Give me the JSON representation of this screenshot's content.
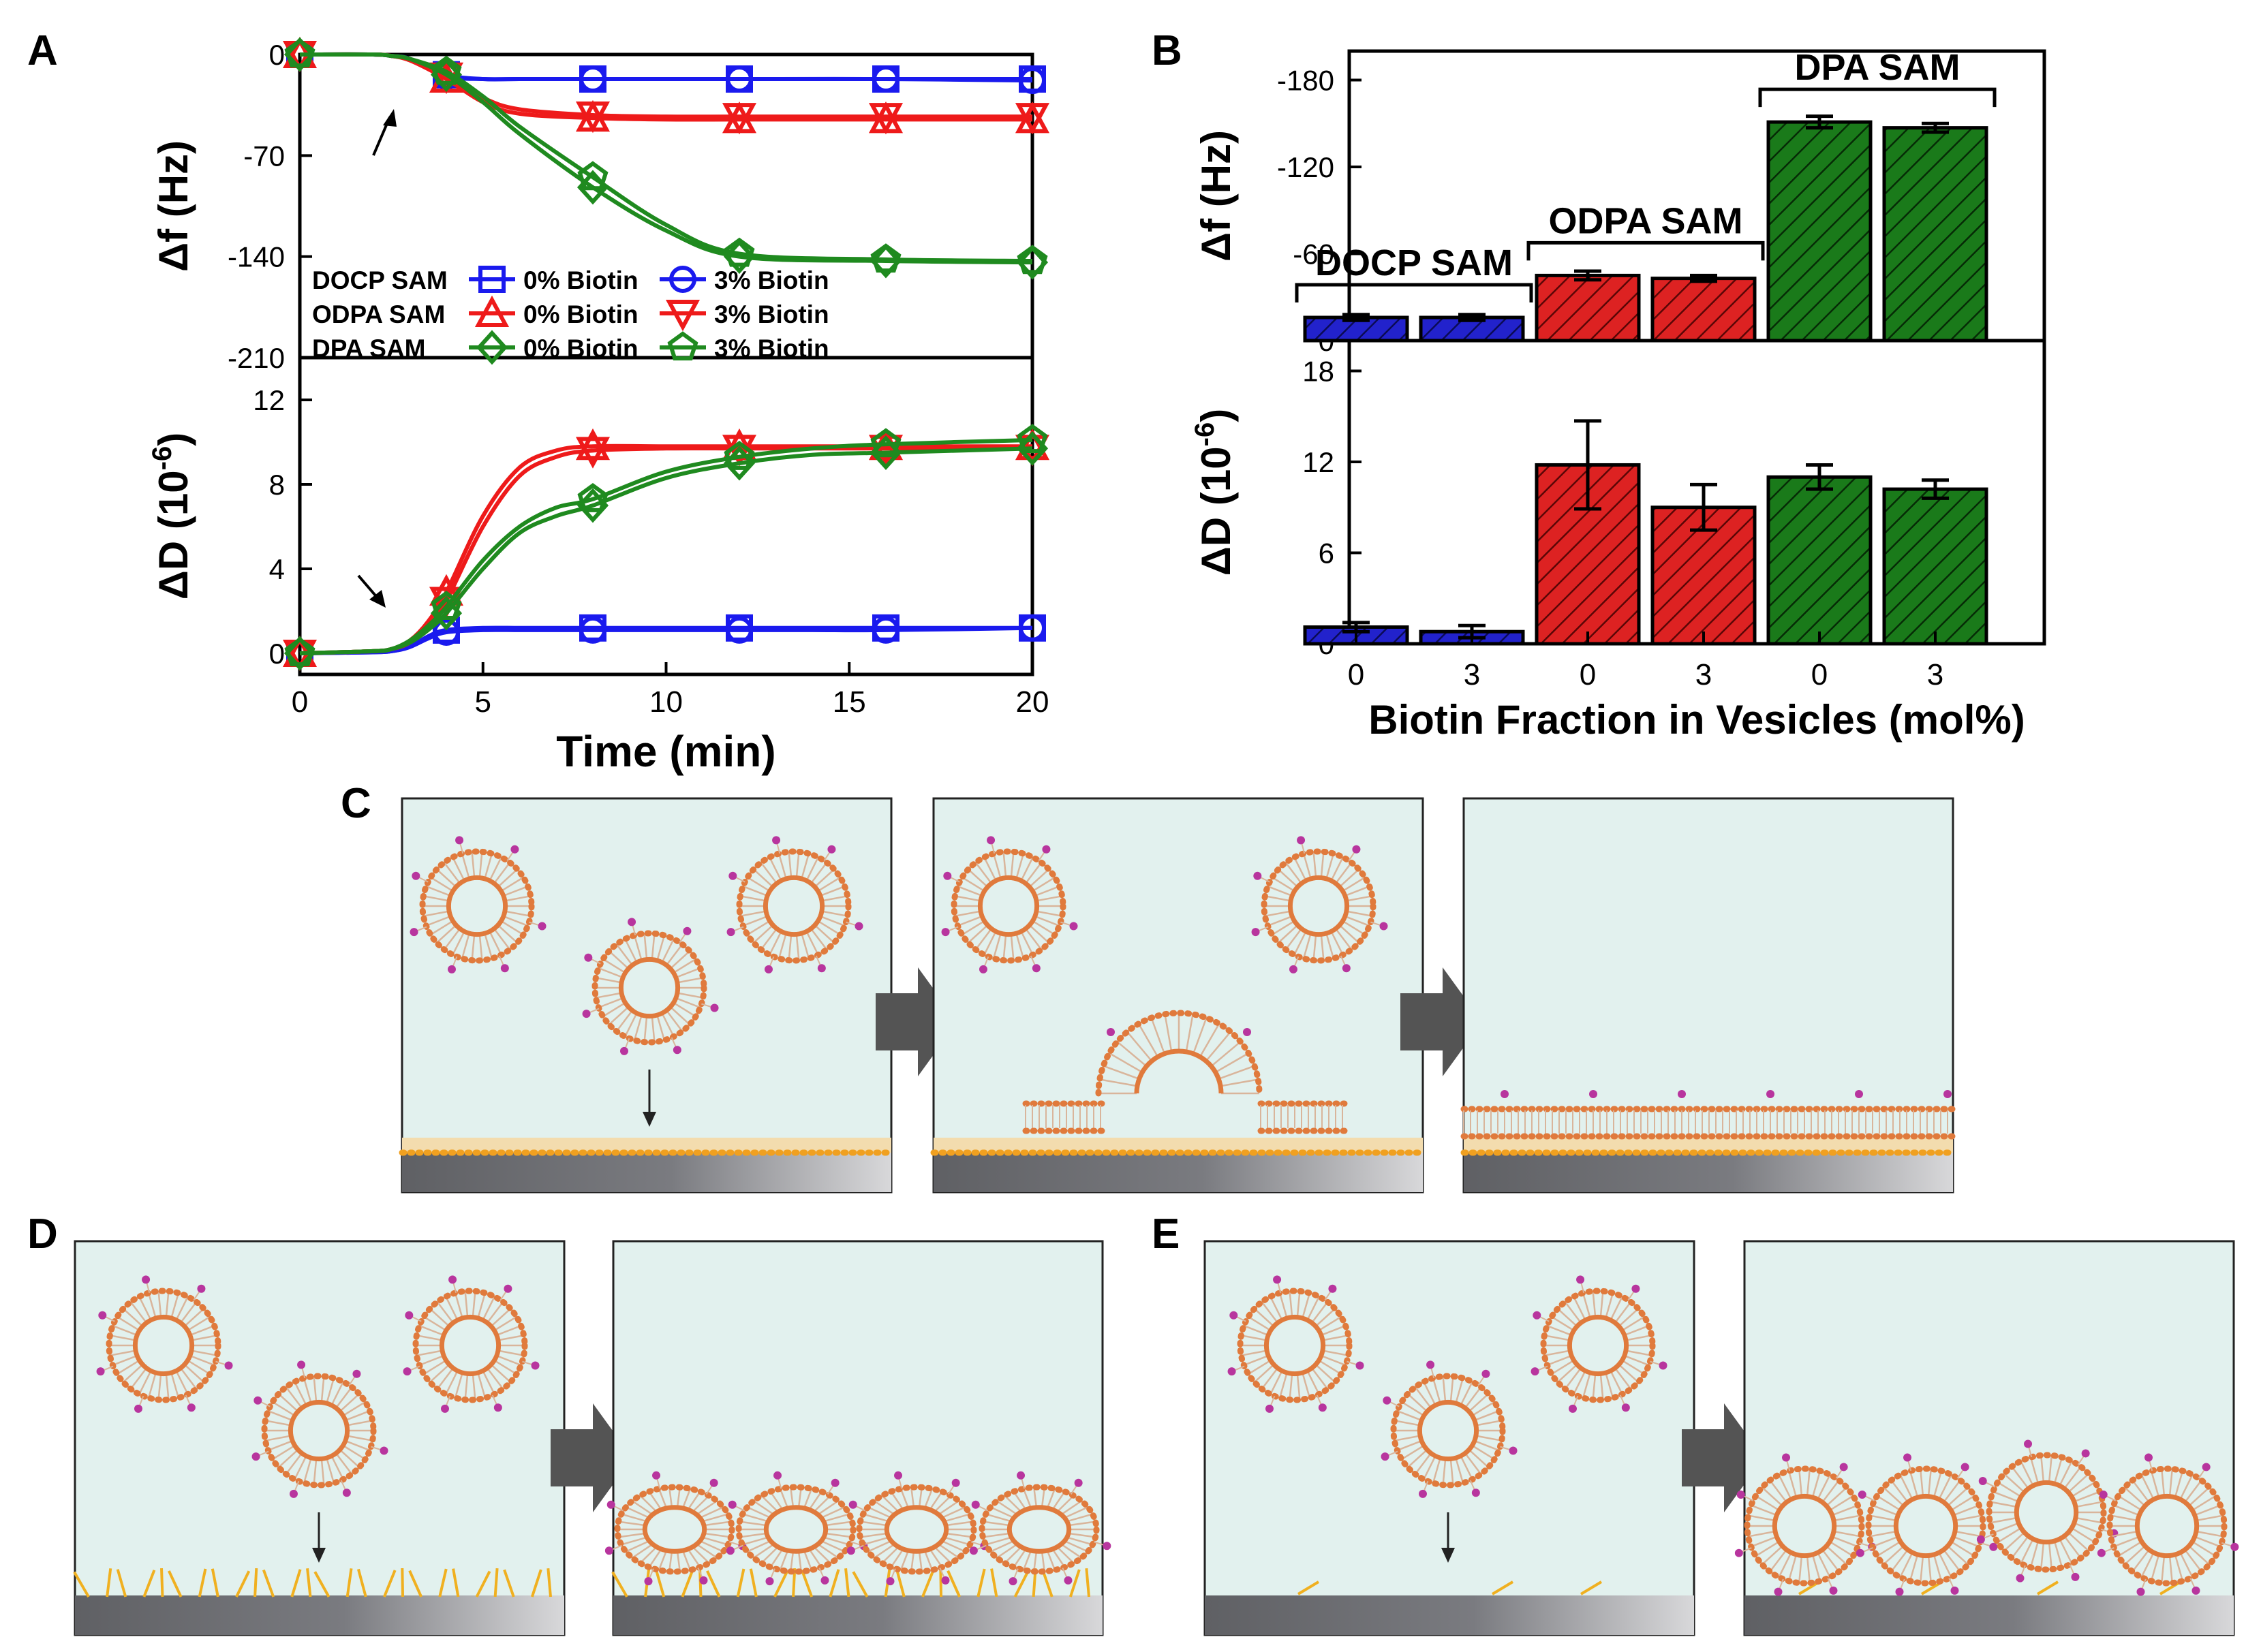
{
  "colors": {
    "blue": "#1a1aee",
    "red": "#ee1a1a",
    "green": "#1f8a1f",
    "bar_blue": "#2222cc",
    "bar_red": "#dd2222",
    "bar_green": "#1a7a1a",
    "scene_bg": "#e2f1ee",
    "lipid": "#e07a3c",
    "biotin": "#b8359e",
    "arrow": "#555555"
  },
  "panels": {
    "A": "A",
    "B": "B",
    "C": "C",
    "D": "D",
    "E": "E"
  },
  "legend": {
    "rows": [
      {
        "sam": "DOCP SAM",
        "c0": "0% Biotin",
        "c3": "3% Biotin",
        "color": "blue"
      },
      {
        "sam": "ODPA SAM",
        "c0": "0% Biotin",
        "c3": "3% Biotin",
        "color": "red"
      },
      {
        "sam": "DPA SAM",
        "c0": "0% Biotin",
        "c3": "3% Biotin",
        "color": "green"
      }
    ]
  },
  "chart_data": [
    {
      "id": "A-top",
      "type": "line",
      "ylabel": "Δf (Hz)",
      "xlim": [
        0,
        20
      ],
      "ylim": [
        -210,
        0
      ],
      "y_ticks": [
        0,
        -70,
        -140,
        -210
      ],
      "y_tick_labels": [
        "0",
        "-70",
        "-140",
        "-210"
      ],
      "x": [
        0,
        2,
        2.5,
        3,
        4,
        5,
        6,
        8,
        10,
        12,
        16,
        20
      ],
      "marker_x": [
        0,
        4,
        8,
        12,
        16,
        20
      ],
      "series": [
        {
          "name": "DOCP SAM 0% Biotin",
          "color": "blue",
          "marker": "square",
          "values": [
            0,
            0,
            -1,
            -3,
            -14,
            -17,
            -17,
            -17,
            -17,
            -17,
            -17,
            -17
          ]
        },
        {
          "name": "DOCP SAM 3% Biotin",
          "color": "blue",
          "marker": "circle",
          "values": [
            0,
            0,
            -1,
            -3,
            -15,
            -17,
            -17,
            -17,
            -17,
            -17,
            -17,
            -18
          ]
        },
        {
          "name": "ODPA SAM 0% Biotin",
          "color": "red",
          "marker": "triangle-up",
          "values": [
            0,
            0,
            -1,
            -4,
            -17,
            -33,
            -41,
            -44,
            -45,
            -45,
            -45,
            -45
          ]
        },
        {
          "name": "ODPA SAM 3% Biotin",
          "color": "red",
          "marker": "triangle-down",
          "values": [
            0,
            0,
            -1,
            -4,
            -15,
            -30,
            -38,
            -42,
            -43,
            -43,
            -43,
            -43
          ]
        },
        {
          "name": "DPA SAM 0% Biotin",
          "color": "green",
          "marker": "diamond",
          "values": [
            0,
            0,
            -1,
            -3,
            -14,
            -33,
            -55,
            -92,
            -122,
            -140,
            -143,
            -144
          ]
        },
        {
          "name": "DPA SAM 3% Biotin",
          "color": "green",
          "marker": "pentagon",
          "values": [
            0,
            0,
            -1,
            -3,
            -12,
            -29,
            -50,
            -85,
            -118,
            -138,
            -142,
            -143
          ]
        }
      ],
      "annotations": [
        {
          "text": "injection arrow",
          "x": 2.2
        }
      ]
    },
    {
      "id": "A-bottom",
      "type": "line",
      "ylabel": "ΔD (10-6)",
      "ylabel_main": "ΔD (10",
      "ylabel_sup": "-6",
      "ylabel_end": ")",
      "xlabel": "Time (min)",
      "xlim": [
        0,
        20
      ],
      "ylim": [
        -1,
        14
      ],
      "x_ticks": [
        0,
        5,
        10,
        15,
        20
      ],
      "x_tick_labels": [
        "0",
        "5",
        "10",
        "15",
        "20"
      ],
      "y_ticks": [
        0,
        4,
        8,
        12
      ],
      "y_tick_labels": [
        "0",
        "4",
        "8",
        "12"
      ],
      "x": [
        0,
        2,
        2.5,
        3,
        3.5,
        4,
        5,
        6,
        7,
        8,
        10,
        12,
        14,
        16,
        20
      ],
      "marker_x": [
        0,
        4,
        8,
        12,
        16,
        20
      ],
      "series": [
        {
          "name": "DOCP SAM 0% Biotin",
          "color": "blue",
          "marker": "square",
          "values": [
            0,
            0.05,
            0.1,
            0.3,
            0.8,
            1.1,
            1.2,
            1.2,
            1.2,
            1.2,
            1.2,
            1.2,
            1.2,
            1.2,
            1.2
          ]
        },
        {
          "name": "DOCP SAM 3% Biotin",
          "color": "blue",
          "marker": "circle",
          "values": [
            0,
            0.05,
            0.1,
            0.3,
            0.7,
            1.0,
            1.1,
            1.1,
            1.1,
            1.1,
            1.1,
            1.1,
            1.1,
            1.1,
            1.2
          ]
        },
        {
          "name": "ODPA SAM 0% Biotin",
          "color": "red",
          "marker": "triangle-up",
          "values": [
            0,
            0.1,
            0.2,
            0.6,
            1.5,
            2.9,
            6.5,
            8.8,
            9.6,
            9.8,
            9.8,
            9.8,
            9.8,
            9.8,
            9.8
          ]
        },
        {
          "name": "ODPA SAM 3% Biotin",
          "color": "red",
          "marker": "triangle-down",
          "values": [
            0,
            0.1,
            0.2,
            0.5,
            1.3,
            2.5,
            6.0,
            8.4,
            9.3,
            9.6,
            9.7,
            9.7,
            9.7,
            9.7,
            9.7
          ]
        },
        {
          "name": "DPA SAM 0% Biotin",
          "color": "green",
          "marker": "diamond",
          "values": [
            0,
            0.1,
            0.2,
            0.5,
            1.1,
            1.9,
            4.0,
            5.7,
            6.5,
            7.0,
            8.3,
            9.0,
            9.4,
            9.5,
            9.7
          ]
        },
        {
          "name": "DPA SAM 3% Biotin",
          "color": "green",
          "marker": "pentagon",
          "values": [
            0,
            0.1,
            0.2,
            0.6,
            1.3,
            2.2,
            4.4,
            6.0,
            6.9,
            7.3,
            8.6,
            9.3,
            9.7,
            9.9,
            10.1
          ]
        }
      ]
    },
    {
      "id": "B-top",
      "type": "bar",
      "ylabel": "Δf (Hz)",
      "ylim": [
        0,
        -200
      ],
      "y_ticks": [
        0,
        -60,
        -120,
        -180
      ],
      "y_tick_labels": [
        "0",
        "-60",
        "-120",
        "-180"
      ],
      "bars": [
        {
          "group": "DOCP SAM",
          "biotin": "0",
          "value": -16,
          "err": 2,
          "color": "bar_blue"
        },
        {
          "group": "DOCP SAM",
          "biotin": "3",
          "value": -16,
          "err": 2,
          "color": "bar_blue"
        },
        {
          "group": "ODPA SAM",
          "biotin": "0",
          "value": -45,
          "err": 3,
          "color": "bar_red"
        },
        {
          "group": "ODPA SAM",
          "biotin": "3",
          "value": -43,
          "err": 2,
          "color": "bar_red"
        },
        {
          "group": "DPA SAM",
          "biotin": "0",
          "value": -151,
          "err": 4,
          "color": "bar_green"
        },
        {
          "group": "DPA SAM",
          "biotin": "3",
          "value": -147,
          "err": 3,
          "color": "bar_green"
        }
      ],
      "group_labels": [
        "DOCP SAM",
        "ODPA SAM",
        "DPA SAM"
      ]
    },
    {
      "id": "B-bottom",
      "type": "bar",
      "ylabel": "ΔD (10-6)",
      "ylabel_main": "ΔD (10",
      "ylabel_sup": "-6",
      "ylabel_end": ")",
      "xlabel": "Biotin Fraction in Vesicles (mol%)",
      "ylim": [
        0,
        20
      ],
      "y_ticks": [
        0,
        6,
        12,
        18
      ],
      "y_tick_labels": [
        "0",
        "6",
        "12",
        "18"
      ],
      "categories": [
        "0",
        "3",
        "0",
        "3",
        "0",
        "3"
      ],
      "bars": [
        {
          "group": "DOCP SAM",
          "biotin": "0",
          "value": 1.1,
          "err": 0.3,
          "color": "bar_blue"
        },
        {
          "group": "DOCP SAM",
          "biotin": "3",
          "value": 0.8,
          "err": 0.4,
          "color": "bar_blue"
        },
        {
          "group": "ODPA SAM",
          "biotin": "0",
          "value": 11.8,
          "err": 2.9,
          "color": "bar_red"
        },
        {
          "group": "ODPA SAM",
          "biotin": "3",
          "value": 9.0,
          "err": 1.5,
          "color": "bar_red"
        },
        {
          "group": "DPA SAM",
          "biotin": "0",
          "value": 11.0,
          "err": 0.8,
          "color": "bar_green"
        },
        {
          "group": "DPA SAM",
          "biotin": "3",
          "value": 10.2,
          "err": 0.6,
          "color": "bar_green"
        }
      ]
    }
  ],
  "schematics": {
    "C": {
      "steps": [
        "vesicles approaching DOCP SAM",
        "vesicle rupturing",
        "supported lipid bilayer"
      ]
    },
    "D": {
      "steps": [
        "vesicles approaching ODPA SAM",
        "adsorbed deformed vesicles"
      ]
    },
    "E": {
      "steps": [
        "vesicles approaching DPA SAM",
        "adsorbed intact vesicles"
      ]
    }
  }
}
